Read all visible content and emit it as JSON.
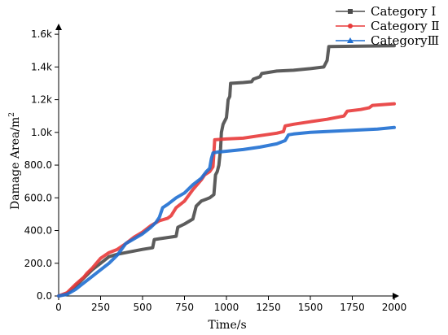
{
  "chart_data": {
    "type": "line",
    "title": "",
    "xlabel": "Time/s",
    "ylabel": "Damage Area/m²",
    "ylabel_base": "Damage Area/m",
    "ylabel_sup": "2",
    "xlim": [
      0,
      2000
    ],
    "ylim": [
      0,
      1700
    ],
    "x_ticks": [
      0,
      250,
      500,
      750,
      1000,
      1250,
      1500,
      1750,
      2000
    ],
    "x_tick_labels": [
      "0",
      "250",
      "500",
      "750",
      "1000",
      "1250",
      "1500",
      "1750",
      "2000"
    ],
    "y_ticks": [
      0,
      200,
      400,
      600,
      800,
      1000,
      1200,
      1400,
      1600
    ],
    "y_tick_labels": [
      "0.0",
      "200.0",
      "400.0",
      "600.0",
      "800.0",
      "1.0k",
      "1.2k",
      "1.4k",
      "1.6k"
    ],
    "grid": false,
    "legend_position": "top-right",
    "series": [
      {
        "name": "Category Ⅰ",
        "color": "#4a4a4a",
        "marker": "square",
        "points": [
          [
            0,
            0
          ],
          [
            50,
            15
          ],
          [
            100,
            60
          ],
          [
            150,
            110
          ],
          [
            200,
            160
          ],
          [
            250,
            200
          ],
          [
            300,
            240
          ],
          [
            350,
            255
          ],
          [
            400,
            265
          ],
          [
            450,
            275
          ],
          [
            500,
            285
          ],
          [
            560,
            295
          ],
          [
            570,
            345
          ],
          [
            600,
            350
          ],
          [
            700,
            365
          ],
          [
            710,
            420
          ],
          [
            750,
            440
          ],
          [
            800,
            470
          ],
          [
            820,
            550
          ],
          [
            850,
            580
          ],
          [
            900,
            600
          ],
          [
            925,
            620
          ],
          [
            935,
            740
          ],
          [
            945,
            760
          ],
          [
            955,
            800
          ],
          [
            965,
            900
          ],
          [
            970,
            1000
          ],
          [
            980,
            1050
          ],
          [
            1000,
            1090
          ],
          [
            1010,
            1200
          ],
          [
            1020,
            1220
          ],
          [
            1025,
            1300
          ],
          [
            1100,
            1305
          ],
          [
            1150,
            1310
          ],
          [
            1160,
            1325
          ],
          [
            1200,
            1340
          ],
          [
            1210,
            1360
          ],
          [
            1300,
            1375
          ],
          [
            1400,
            1380
          ],
          [
            1500,
            1390
          ],
          [
            1580,
            1400
          ],
          [
            1600,
            1440
          ],
          [
            1610,
            1525
          ],
          [
            2000,
            1530
          ]
        ]
      },
      {
        "name": "Category Ⅱ",
        "color": "#e83a3a",
        "marker": "circle",
        "points": [
          [
            0,
            0
          ],
          [
            50,
            20
          ],
          [
            100,
            70
          ],
          [
            150,
            115
          ],
          [
            170,
            140
          ],
          [
            200,
            170
          ],
          [
            250,
            230
          ],
          [
            300,
            265
          ],
          [
            350,
            285
          ],
          [
            400,
            320
          ],
          [
            450,
            360
          ],
          [
            500,
            390
          ],
          [
            550,
            430
          ],
          [
            600,
            460
          ],
          [
            650,
            475
          ],
          [
            670,
            490
          ],
          [
            700,
            540
          ],
          [
            750,
            580
          ],
          [
            800,
            650
          ],
          [
            850,
            710
          ],
          [
            870,
            740
          ],
          [
            900,
            760
          ],
          [
            920,
            790
          ],
          [
            930,
            955
          ],
          [
            1000,
            960
          ],
          [
            1100,
            965
          ],
          [
            1200,
            980
          ],
          [
            1300,
            995
          ],
          [
            1340,
            1005
          ],
          [
            1350,
            1040
          ],
          [
            1400,
            1050
          ],
          [
            1500,
            1065
          ],
          [
            1600,
            1080
          ],
          [
            1700,
            1100
          ],
          [
            1720,
            1130
          ],
          [
            1800,
            1140
          ],
          [
            1850,
            1150
          ],
          [
            1870,
            1165
          ],
          [
            2000,
            1175
          ]
        ]
      },
      {
        "name": "CategoryⅢ",
        "color": "#1f6fd1",
        "marker": "triangle",
        "points": [
          [
            0,
            0
          ],
          [
            50,
            10
          ],
          [
            100,
            40
          ],
          [
            150,
            80
          ],
          [
            200,
            120
          ],
          [
            250,
            160
          ],
          [
            300,
            200
          ],
          [
            350,
            250
          ],
          [
            400,
            320
          ],
          [
            450,
            350
          ],
          [
            500,
            380
          ],
          [
            550,
            420
          ],
          [
            580,
            450
          ],
          [
            600,
            480
          ],
          [
            620,
            540
          ],
          [
            650,
            560
          ],
          [
            700,
            600
          ],
          [
            750,
            630
          ],
          [
            800,
            680
          ],
          [
            850,
            720
          ],
          [
            880,
            760
          ],
          [
            900,
            780
          ],
          [
            910,
            840
          ],
          [
            920,
            875
          ],
          [
            950,
            880
          ],
          [
            1000,
            885
          ],
          [
            1100,
            895
          ],
          [
            1200,
            910
          ],
          [
            1300,
            930
          ],
          [
            1350,
            950
          ],
          [
            1370,
            985
          ],
          [
            1400,
            990
          ],
          [
            1500,
            1000
          ],
          [
            1600,
            1005
          ],
          [
            1700,
            1010
          ],
          [
            1800,
            1015
          ],
          [
            1900,
            1020
          ],
          [
            2000,
            1030
          ]
        ]
      }
    ]
  }
}
